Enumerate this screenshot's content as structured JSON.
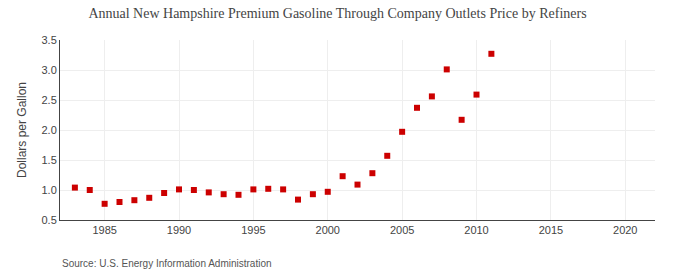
{
  "chart_data": {
    "type": "scatter",
    "title": "Annual New Hampshire Premium Gasoline Through Company Outlets Price by Refiners",
    "y_label": "Dollars per Gallon",
    "annotations": [
      "Source: U.S. Energy Information Administration"
    ],
    "x": [
      1983,
      1984,
      1985,
      1986,
      1987,
      1988,
      1989,
      1990,
      1991,
      1992,
      1993,
      1994,
      1995,
      1996,
      1997,
      1998,
      1999,
      2000,
      2001,
      2002,
      2003,
      2004,
      2005,
      2006,
      2007,
      2008,
      2009,
      2010,
      2011
    ],
    "values": [
      1.04,
      1.0,
      0.77,
      0.8,
      0.83,
      0.87,
      0.95,
      1.01,
      1.0,
      0.96,
      0.93,
      0.92,
      1.01,
      1.02,
      1.01,
      0.84,
      0.93,
      0.97,
      1.23,
      1.09,
      1.28,
      1.57,
      1.97,
      2.37,
      2.56,
      3.01,
      2.17,
      2.59,
      3.27
    ],
    "color": "#cc0000",
    "marker": "square",
    "xlim": [
      1982,
      2022
    ],
    "xticks": [
      1985,
      1990,
      1995,
      2000,
      2005,
      2010,
      2015,
      2020
    ],
    "ylim": [
      0.5,
      3.5
    ],
    "yticks": [
      0.5,
      {
        "value": 1,
        "label": "1.0"
      },
      1.5,
      {
        "value": 2,
        "label": "2.0"
      },
      2.5,
      {
        "value": 3,
        "label": "3.0"
      },
      3.5
    ],
    "grid": true
  }
}
